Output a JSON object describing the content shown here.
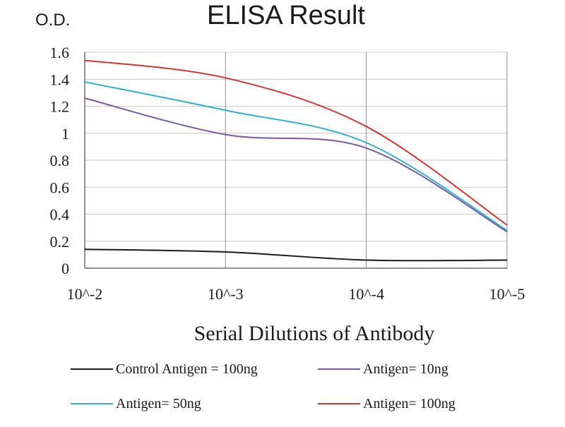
{
  "chart_data": {
    "type": "line",
    "title": "ELISA Result",
    "ylabel": "O.D.",
    "xlabel": "Serial Dilutions  of Antibody",
    "categories": [
      "10^-2",
      "10^-3",
      "10^-4",
      "10^-5"
    ],
    "ylim": [
      0,
      1.6
    ],
    "yticks": [
      "0",
      "0.2",
      "0.4",
      "0.6",
      "0.8",
      "1",
      "1.2",
      "1.4",
      "1.6"
    ],
    "ytick_values": [
      0,
      0.2,
      0.4,
      0.6,
      0.8,
      1.0,
      1.2,
      1.4,
      1.6
    ],
    "grid": true,
    "legend_position": "bottom",
    "series": [
      {
        "name": "Control Antigen = 100ng",
        "values": [
          0.14,
          0.12,
          0.06,
          0.06
        ],
        "color": "#1a1a1a"
      },
      {
        "name": "Antigen= 10ng",
        "values": [
          1.26,
          0.99,
          0.89,
          0.27
        ],
        "color": "#7b58a8"
      },
      {
        "name": "Antigen= 50ng",
        "values": [
          1.38,
          1.17,
          0.93,
          0.28
        ],
        "color": "#2ab3d1"
      },
      {
        "name": "Antigen= 100ng",
        "values": [
          1.54,
          1.41,
          1.05,
          0.32
        ],
        "color": "#d93535"
      }
    ]
  }
}
